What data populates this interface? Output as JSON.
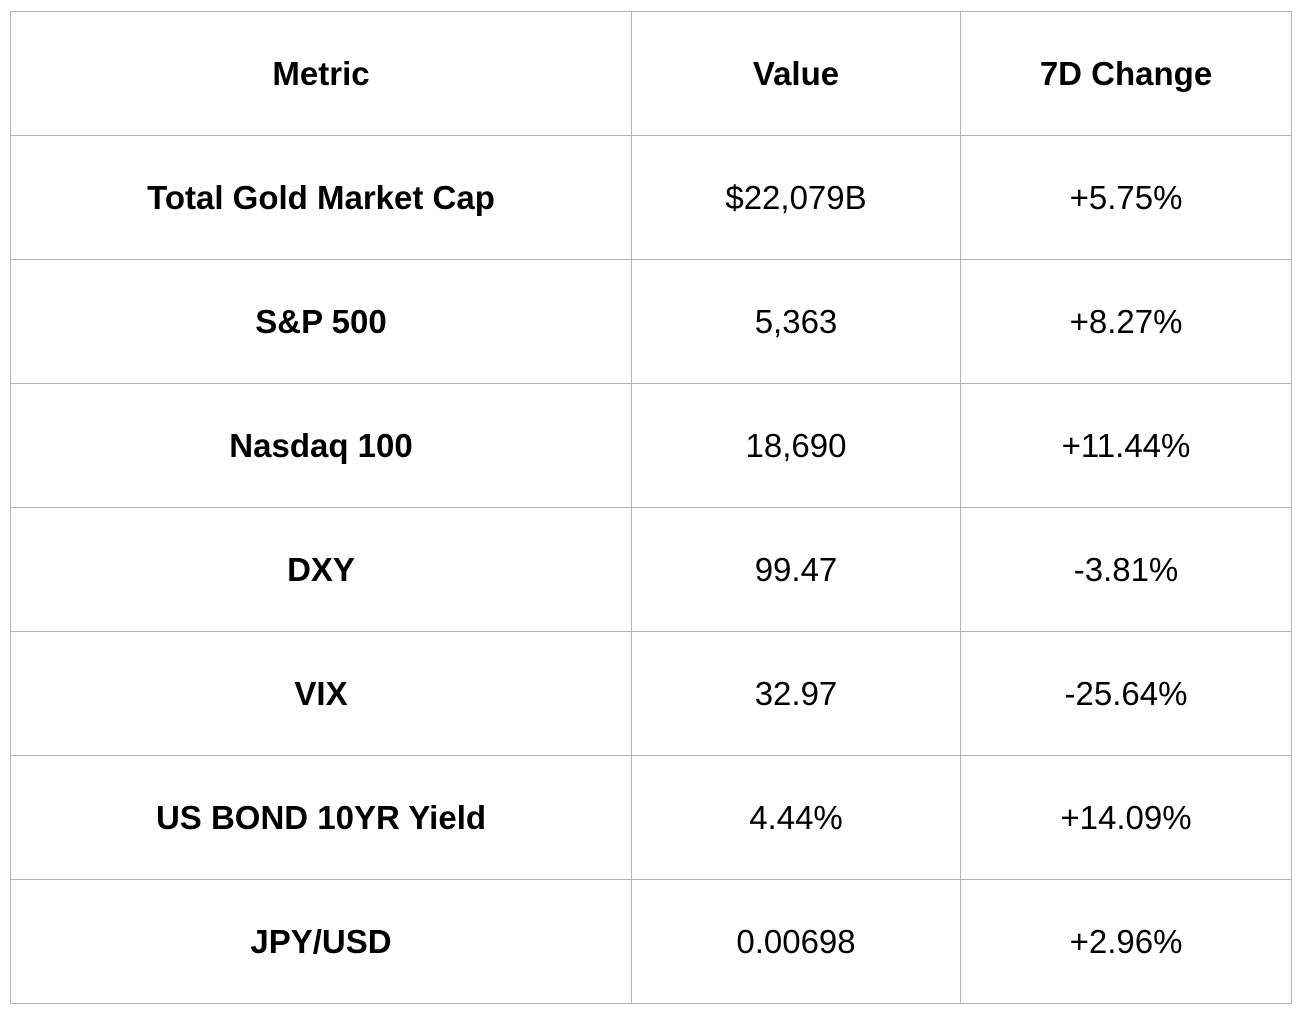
{
  "table": {
    "headers": [
      "Metric",
      "Value",
      "7D Change"
    ],
    "rows": [
      {
        "metric": "Total Gold Market Cap",
        "value": "$22,079B",
        "change": "+5.75%"
      },
      {
        "metric": "S&P 500",
        "value": "5,363",
        "change": "+8.27%"
      },
      {
        "metric": "Nasdaq 100",
        "value": "18,690",
        "change": "+11.44%"
      },
      {
        "metric": "DXY",
        "value": "99.47",
        "change": "-3.81%"
      },
      {
        "metric": "VIX",
        "value": "32.97",
        "change": "-25.64%"
      },
      {
        "metric": "US BOND 10YR Yield",
        "value": "4.44%",
        "change": "+14.09%"
      },
      {
        "metric": "JPY/USD",
        "value": "0.00698",
        "change": "+2.96%"
      }
    ]
  },
  "colors": {
    "border": "#b3b3b3",
    "text": "#000000",
    "background": "#ffffff"
  }
}
